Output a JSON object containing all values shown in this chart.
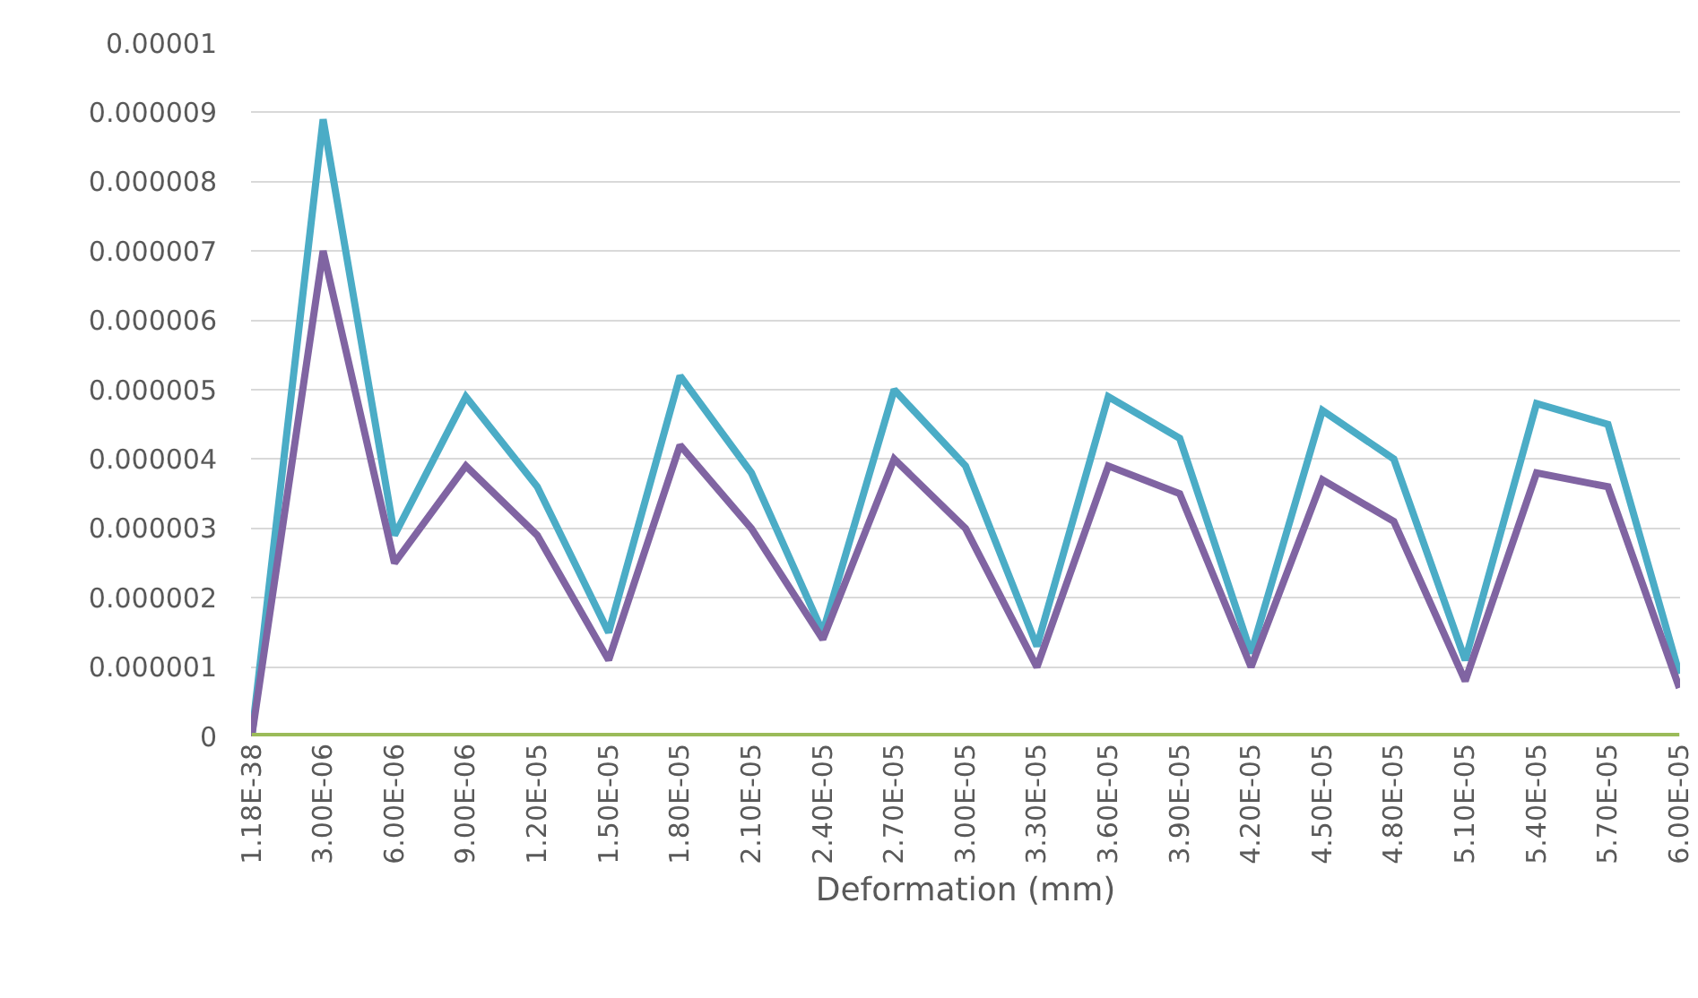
{
  "chart_data": {
    "type": "line",
    "xlabel": "Deformation (mm)",
    "categories": [
      "1.18E-38",
      "3.00E-06",
      "6.00E-06",
      "9.00E-06",
      "1.20E-05",
      "1.50E-05",
      "1.80E-05",
      "2.10E-05",
      "2.40E-05",
      "2.70E-05",
      "3.00E-05",
      "3.30E-05",
      "3.60E-05",
      "3.90E-05",
      "4.20E-05",
      "4.50E-05",
      "4.80E-05",
      "5.10E-05",
      "5.40E-05",
      "5.70E-05",
      "6.00E-05"
    ],
    "series": [
      {
        "color": "#4bacc6",
        "values": [
          0,
          8.9e-06,
          2.9e-06,
          4.9e-06,
          3.6e-06,
          1.5e-06,
          5.2e-06,
          3.8e-06,
          1.5e-06,
          5e-06,
          3.9e-06,
          1.3e-06,
          4.9e-06,
          4.3e-06,
          1.2e-06,
          4.7e-06,
          4e-06,
          1.1e-06,
          4.8e-06,
          4.5e-06,
          9e-07
        ]
      },
      {
        "color": "#8064a2",
        "values": [
          0,
          7e-06,
          2.5e-06,
          3.9e-06,
          2.9e-06,
          1.1e-06,
          4.2e-06,
          3e-06,
          1.4e-06,
          4e-06,
          3e-06,
          1e-06,
          3.9e-06,
          3.5e-06,
          1e-06,
          3.7e-06,
          3.1e-06,
          8e-07,
          3.8e-06,
          3.6e-06,
          7e-07
        ]
      },
      {
        "color": "#9bbb59",
        "values": [
          0,
          0,
          0,
          0,
          0,
          0,
          0,
          0,
          0,
          0,
          0,
          0,
          0,
          0,
          0,
          0,
          0,
          0,
          0,
          0,
          0
        ]
      }
    ],
    "ylim": [
      0,
      1e-05
    ],
    "yticks": [
      {
        "value": 0,
        "label": "0"
      },
      {
        "value": 1e-06,
        "label": "0.000001"
      },
      {
        "value": 2e-06,
        "label": "0.000002"
      },
      {
        "value": 3e-06,
        "label": "0.000003"
      },
      {
        "value": 4e-06,
        "label": "0.000004"
      },
      {
        "value": 5e-06,
        "label": "0.000005"
      },
      {
        "value": 6e-06,
        "label": "0.000006"
      },
      {
        "value": 7e-06,
        "label": "0.000007"
      },
      {
        "value": 8e-06,
        "label": "0.000008"
      },
      {
        "value": 9e-06,
        "label": "0.000009"
      },
      {
        "value": 1e-05,
        "label": "0.00001"
      }
    ],
    "grid": "y",
    "marker": "none",
    "line_style": "solid"
  }
}
